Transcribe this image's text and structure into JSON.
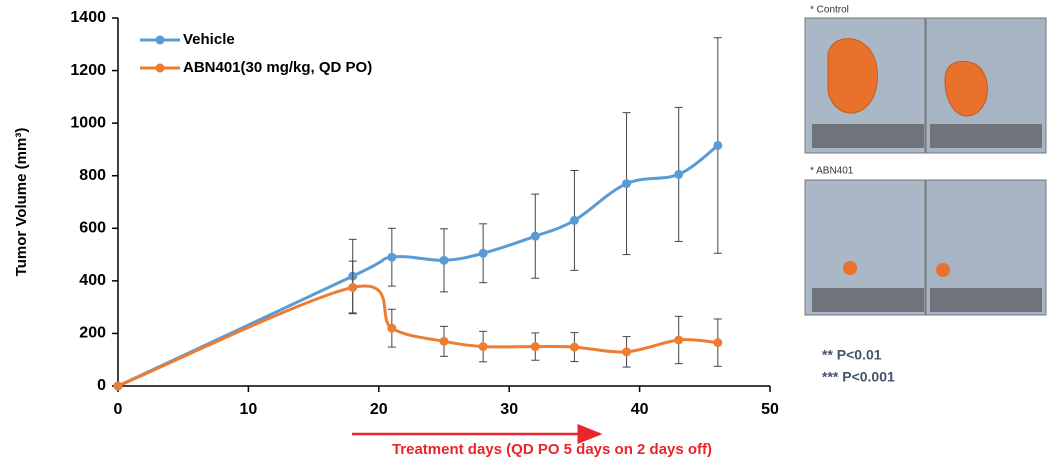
{
  "chart_data": {
    "type": "line",
    "y_label": "Tumor Volume (mm³)",
    "x_annotation": "Treatment days (QD PO 5 days on 2 days off)",
    "x": [
      0,
      18,
      21,
      25,
      28,
      32,
      35,
      39,
      43,
      46
    ],
    "series": [
      {
        "name": "Vehicle",
        "color": "#5b9bd5",
        "values": [
          0,
          418,
          490,
          478,
          505,
          570,
          630,
          770,
          805,
          915
        ],
        "errors": [
          null,
          140,
          110,
          120,
          112,
          160,
          190,
          270,
          255,
          410
        ]
      },
      {
        "name": "ABN401(30 mg/kg, QD PO)",
        "color": "#ed7d31",
        "values": [
          0,
          375,
          220,
          170,
          150,
          150,
          148,
          130,
          175,
          165
        ],
        "errors": [
          null,
          100,
          72,
          57,
          58,
          52,
          55,
          58,
          90,
          90
        ]
      }
    ],
    "xlim": [
      0,
      50
    ],
    "xticks": [
      0,
      10,
      20,
      30,
      40,
      50
    ],
    "ylim": [
      0,
      1400
    ],
    "yticks": [
      0,
      200,
      400,
      600,
      800,
      1000,
      1200,
      1400
    ],
    "grid": false,
    "legend": "top-left"
  },
  "photo_panel": {
    "control_label": "* Control",
    "treated_label": "* ABN401",
    "p_values": [
      "** P<0.01",
      "*** P<0.001"
    ]
  }
}
